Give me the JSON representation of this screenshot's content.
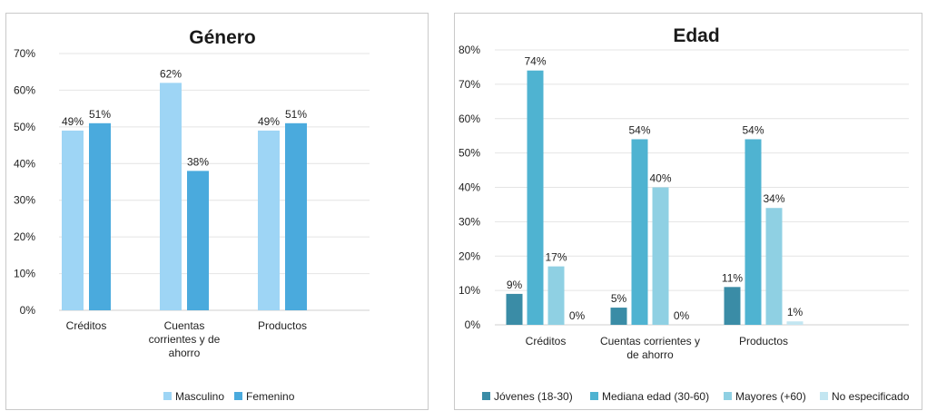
{
  "chart_data": [
    {
      "type": "bar",
      "title": "Género",
      "categories": [
        [
          "Créditos"
        ],
        [
          "Cuentas",
          "corrientes y de",
          "ahorro"
        ],
        [
          "Productos"
        ]
      ],
      "series": [
        {
          "name": "Masculino",
          "values": [
            49,
            62,
            49
          ],
          "color": "#9ed5f5"
        },
        {
          "name": "Femenino",
          "values": [
            51,
            38,
            51
          ],
          "color": "#4aaadd"
        }
      ],
      "data_labels": [
        [
          "49%",
          "62%",
          "49%"
        ],
        [
          "51%",
          "38%",
          "51%"
        ]
      ],
      "ylim": [
        0,
        70
      ],
      "yticks": [
        "0%",
        "10%",
        "20%",
        "30%",
        "40%",
        "50%",
        "60%",
        "70%"
      ],
      "grid": true,
      "legend": "bottom"
    },
    {
      "type": "bar",
      "title": "Edad",
      "categories": [
        [
          "Créditos"
        ],
        [
          "Cuentas corrientes y",
          "de ahorro"
        ],
        [
          "Productos"
        ]
      ],
      "series": [
        {
          "name": "Jóvenes (18-30)",
          "values": [
            9,
            5,
            11
          ],
          "color": "#3a8ca6"
        },
        {
          "name": "Mediana edad (30-60)",
          "values": [
            74,
            54,
            54
          ],
          "color": "#4fb3d1"
        },
        {
          "name": "Mayores (+60)",
          "values": [
            17,
            40,
            34
          ],
          "color": "#8fd0e3"
        },
        {
          "name": "No especificado",
          "values": [
            0,
            0,
            1
          ],
          "color": "#c3e6f1"
        }
      ],
      "data_labels": [
        [
          "9%",
          "5%",
          "11%"
        ],
        [
          "74%",
          "54%",
          "54%"
        ],
        [
          "17%",
          "40%",
          "34%"
        ],
        [
          "0%",
          "0%",
          "1%"
        ]
      ],
      "ylim": [
        0,
        80
      ],
      "yticks": [
        "0%",
        "10%",
        "20%",
        "30%",
        "40%",
        "50%",
        "60%",
        "70%",
        "80%"
      ],
      "grid": true,
      "legend": "bottom"
    }
  ]
}
